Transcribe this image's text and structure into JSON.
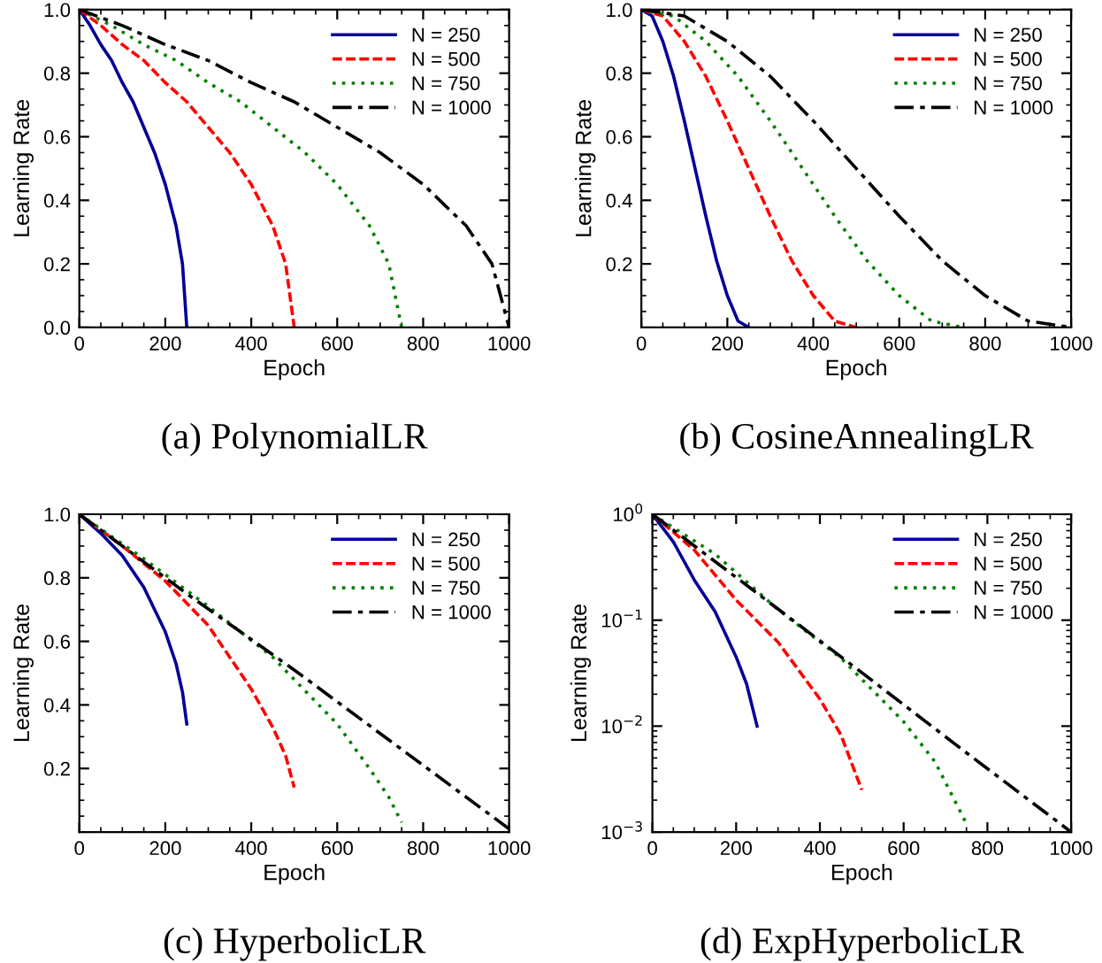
{
  "chart_data": [
    {
      "type": "line",
      "title": "(a) PolynomialLR",
      "xlabel": "Epoch",
      "ylabel": "Learning Rate",
      "xlim": [
        0,
        1000
      ],
      "ylim": [
        0,
        1
      ],
      "xticks": [
        0,
        200,
        400,
        600,
        800,
        1000
      ],
      "yticks": [
        {
          "value": 0,
          "label": "0.0"
        },
        0.2,
        0.4,
        0.6,
        0.8,
        {
          "value": 1,
          "label": "1.0"
        }
      ],
      "legend": "top right",
      "grid": false,
      "series": [
        {
          "name": "N = 250",
          "color": "#000099",
          "line_style": "solid",
          "x": [
            0,
            25,
            50,
            75,
            100,
            125,
            150,
            175,
            200,
            225,
            240,
            250
          ],
          "values": [
            1,
            0.95,
            0.89,
            0.84,
            0.77,
            0.71,
            0.63,
            0.55,
            0.45,
            0.32,
            0.2,
            0
          ]
        },
        {
          "name": "N = 500",
          "color": "#ff0000",
          "line_style": "dashed",
          "x": [
            0,
            50,
            100,
            150,
            200,
            250,
            300,
            350,
            400,
            450,
            480,
            500
          ],
          "values": [
            1,
            0.95,
            0.89,
            0.84,
            0.77,
            0.71,
            0.63,
            0.55,
            0.45,
            0.32,
            0.2,
            0
          ]
        },
        {
          "name": "N = 750",
          "color": "#008000",
          "line_style": "dotted",
          "x": [
            0,
            75,
            150,
            225,
            300,
            375,
            450,
            525,
            600,
            675,
            720,
            750
          ],
          "values": [
            1,
            0.95,
            0.89,
            0.84,
            0.77,
            0.71,
            0.63,
            0.55,
            0.45,
            0.32,
            0.2,
            0
          ]
        },
        {
          "name": "N = 1000",
          "color": "#000000",
          "line_style": "dashdot",
          "x": [
            0,
            100,
            200,
            300,
            400,
            500,
            600,
            700,
            800,
            900,
            960,
            1000
          ],
          "values": [
            1,
            0.95,
            0.89,
            0.84,
            0.77,
            0.71,
            0.63,
            0.55,
            0.45,
            0.32,
            0.2,
            0
          ]
        }
      ]
    },
    {
      "type": "line",
      "title": "(b) CosineAnnealingLR",
      "xlabel": "Epoch",
      "ylabel": "Learning Rate",
      "xlim": [
        0,
        1000
      ],
      "ylim": [
        0,
        1
      ],
      "xticks": [
        0,
        200,
        400,
        600,
        800,
        1000
      ],
      "yticks": [
        0.2,
        0.4,
        0.6,
        0.8,
        {
          "value": 1,
          "label": "1.0"
        }
      ],
      "legend": "top right",
      "grid": false,
      "series": [
        {
          "name": "N = 250",
          "color": "#000099",
          "line_style": "solid",
          "x": [
            0,
            25,
            50,
            75,
            100,
            125,
            150,
            175,
            200,
            225,
            250
          ],
          "values": [
            1,
            0.98,
            0.9,
            0.79,
            0.65,
            0.5,
            0.35,
            0.21,
            0.1,
            0.02,
            0
          ]
        },
        {
          "name": "N = 500",
          "color": "#ff0000",
          "line_style": "dashed",
          "x": [
            0,
            50,
            100,
            150,
            200,
            250,
            300,
            350,
            400,
            450,
            500
          ],
          "values": [
            1,
            0.98,
            0.9,
            0.79,
            0.65,
            0.5,
            0.35,
            0.21,
            0.1,
            0.02,
            0
          ]
        },
        {
          "name": "N = 750",
          "color": "#008000",
          "line_style": "dotted",
          "x": [
            0,
            75,
            150,
            225,
            300,
            375,
            450,
            525,
            600,
            675,
            750
          ],
          "values": [
            1,
            0.98,
            0.9,
            0.79,
            0.65,
            0.5,
            0.35,
            0.21,
            0.1,
            0.02,
            0
          ]
        },
        {
          "name": "N = 1000",
          "color": "#000000",
          "line_style": "dashdot",
          "x": [
            0,
            100,
            200,
            300,
            400,
            500,
            600,
            700,
            800,
            900,
            1000
          ],
          "values": [
            1,
            0.98,
            0.9,
            0.79,
            0.65,
            0.5,
            0.35,
            0.21,
            0.1,
            0.02,
            0
          ]
        }
      ]
    },
    {
      "type": "line",
      "title": "(c) HyperbolicLR",
      "xlabel": "Epoch",
      "ylabel": "Learning Rate",
      "xlim": [
        0,
        1000
      ],
      "ylim": [
        0,
        1
      ],
      "xticks": [
        0,
        200,
        400,
        600,
        800,
        1000
      ],
      "yticks": [
        0.2,
        0.4,
        0.6,
        0.8,
        {
          "value": 1,
          "label": "1.0"
        }
      ],
      "legend": "top right",
      "grid": false,
      "series": [
        {
          "name": "N = 250",
          "color": "#000099",
          "line_style": "solid",
          "x": [
            0,
            50,
            100,
            150,
            200,
            225,
            240,
            250
          ],
          "values": [
            1,
            0.94,
            0.87,
            0.77,
            0.63,
            0.53,
            0.44,
            0.34
          ]
        },
        {
          "name": "N = 500",
          "color": "#ff0000",
          "line_style": "dashed",
          "x": [
            0,
            100,
            200,
            300,
            400,
            450,
            480,
            500
          ],
          "values": [
            1,
            0.9,
            0.79,
            0.65,
            0.45,
            0.33,
            0.24,
            0.14
          ]
        },
        {
          "name": "N = 750",
          "color": "#008000",
          "line_style": "dotted",
          "x": [
            0,
            150,
            300,
            450,
            600,
            675,
            720,
            750
          ],
          "values": [
            1,
            0.86,
            0.71,
            0.55,
            0.34,
            0.2,
            0.11,
            0.03
          ]
        },
        {
          "name": "N = 1000",
          "color": "#000000",
          "line_style": "dashdot",
          "x": [
            0,
            250,
            500,
            750,
            1000
          ],
          "values": [
            1,
            0.75,
            0.51,
            0.26,
            0.01
          ]
        }
      ]
    },
    {
      "type": "line",
      "title": "(d) ExpHyperbolicLR",
      "xlabel": "Epoch",
      "ylabel": "Learning Rate",
      "log": "y",
      "xlim": [
        0,
        1000
      ],
      "ylim": [
        0.001,
        1
      ],
      "xticks": [
        0,
        200,
        400,
        600,
        800,
        1000
      ],
      "yticks": [
        {
          "value": 0.001,
          "label": "10$^{−3}$"
        },
        {
          "value": 0.01,
          "label": "10$^{−2}$"
        },
        {
          "value": 0.1,
          "label": "10$^{−1}$"
        },
        {
          "value": 1,
          "label": "10$^{0}$"
        }
      ],
      "legend": "top right",
      "grid": false,
      "series": [
        {
          "name": "N = 250",
          "color": "#000099",
          "line_style": "solid",
          "x": [
            0,
            50,
            100,
            150,
            200,
            225,
            250
          ],
          "values": [
            1,
            0.55,
            0.24,
            0.12,
            0.045,
            0.025,
            0.01
          ]
        },
        {
          "name": "N = 500",
          "color": "#ff0000",
          "line_style": "dashed",
          "x": [
            0,
            100,
            200,
            300,
            400,
            450,
            500
          ],
          "values": [
            1,
            0.46,
            0.155,
            0.062,
            0.018,
            0.0083,
            0.0025
          ]
        },
        {
          "name": "N = 750",
          "color": "#008000",
          "line_style": "dotted",
          "x": [
            0,
            150,
            300,
            450,
            600,
            675,
            750
          ],
          "values": [
            1,
            0.42,
            0.126,
            0.044,
            0.011,
            0.0046,
            0.0012
          ]
        },
        {
          "name": "N = 1000",
          "color": "#000000",
          "line_style": "dashdot",
          "x": [
            0,
            250,
            500,
            750,
            1000
          ],
          "values": [
            1,
            0.18,
            0.032,
            0.0056,
            0.001
          ]
        }
      ]
    }
  ]
}
